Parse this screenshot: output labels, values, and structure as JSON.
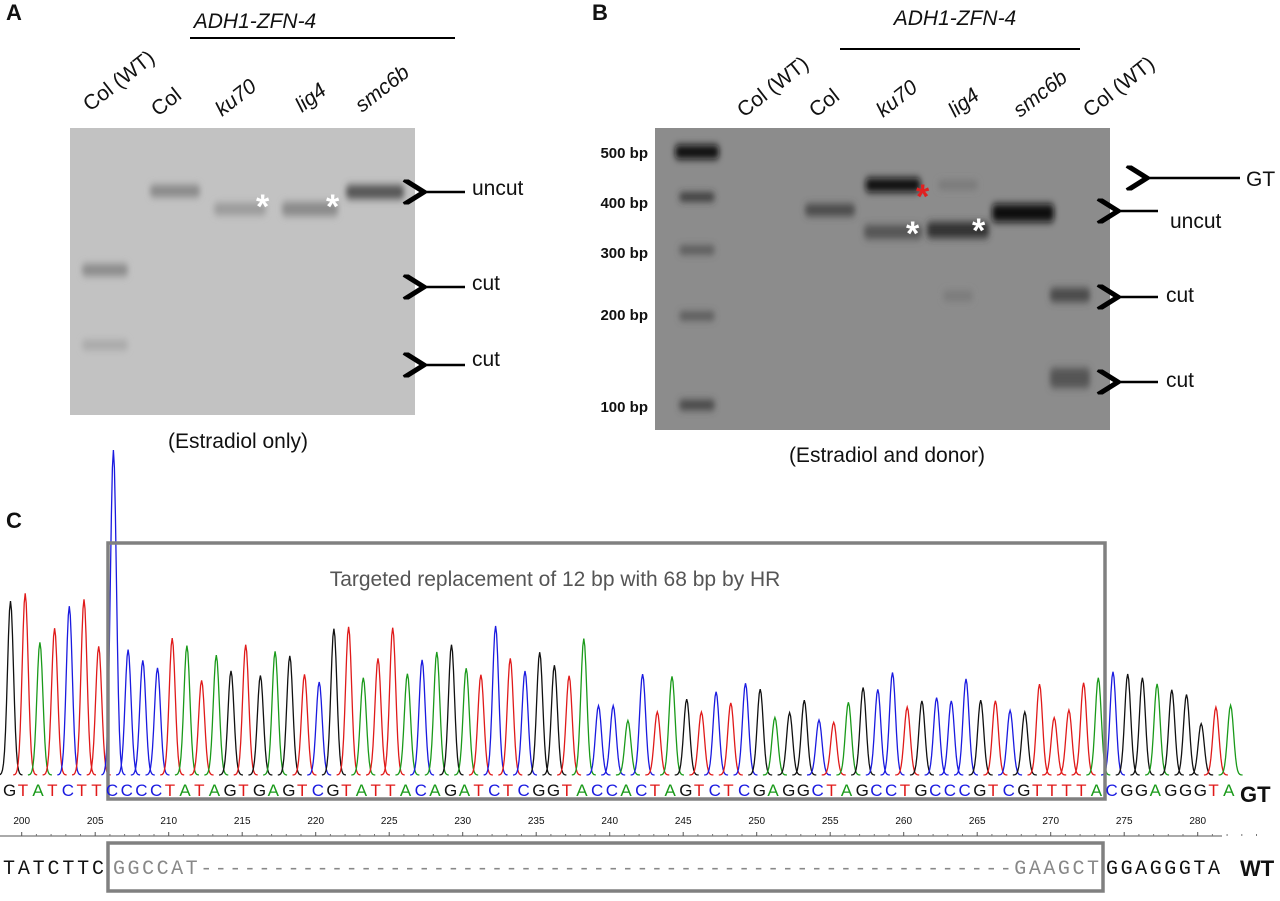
{
  "panel_a": {
    "letter": "A",
    "group_label": "ADH1-ZFN-4",
    "lanes": [
      "Col (WT)",
      "Col",
      "ku70",
      "lig4",
      "smc6b"
    ],
    "arrows": [
      "uncut",
      "cut",
      "cut"
    ],
    "asterisk": "*",
    "caption": "(Estradiol only)"
  },
  "panel_b": {
    "letter": "B",
    "group_label": "ADH1-ZFN-4",
    "lanes": [
      "Col (WT)",
      "Col",
      "ku70",
      "lig4",
      "smc6b",
      "Col (WT)"
    ],
    "markers": [
      "500 bp",
      "400 bp",
      "300 bp",
      "200 bp",
      "100 bp"
    ],
    "arrows": [
      "GT",
      "uncut",
      "cut",
      "cut"
    ],
    "asterisk": "*",
    "caption": "(Estradiol and donor)"
  },
  "panel_c": {
    "letter": "C",
    "box_label": "Targeted replacement of 12 bp with 68 bp by HR",
    "gt_sequence": "GTATCTTCCCCTATAGTGAGTCGTATTACAGATCTCGGTACCACTAGTCTCGAGGCTAGCCTGCCCGTCGTTTTACGGAGGGTA",
    "gt_label": "GT",
    "positions": [
      "200",
      "205",
      "210",
      "215",
      "220",
      "225",
      "230",
      "235",
      "240",
      "245",
      "250",
      "255",
      "260",
      "265",
      "270",
      "275",
      "280"
    ],
    "wt_left": "TATCTTC",
    "wt_box": "GGCCAT--------------------------------------------------------GAAGCT",
    "wt_right": "GGAGGGTA",
    "wt_label": "WT"
  }
}
